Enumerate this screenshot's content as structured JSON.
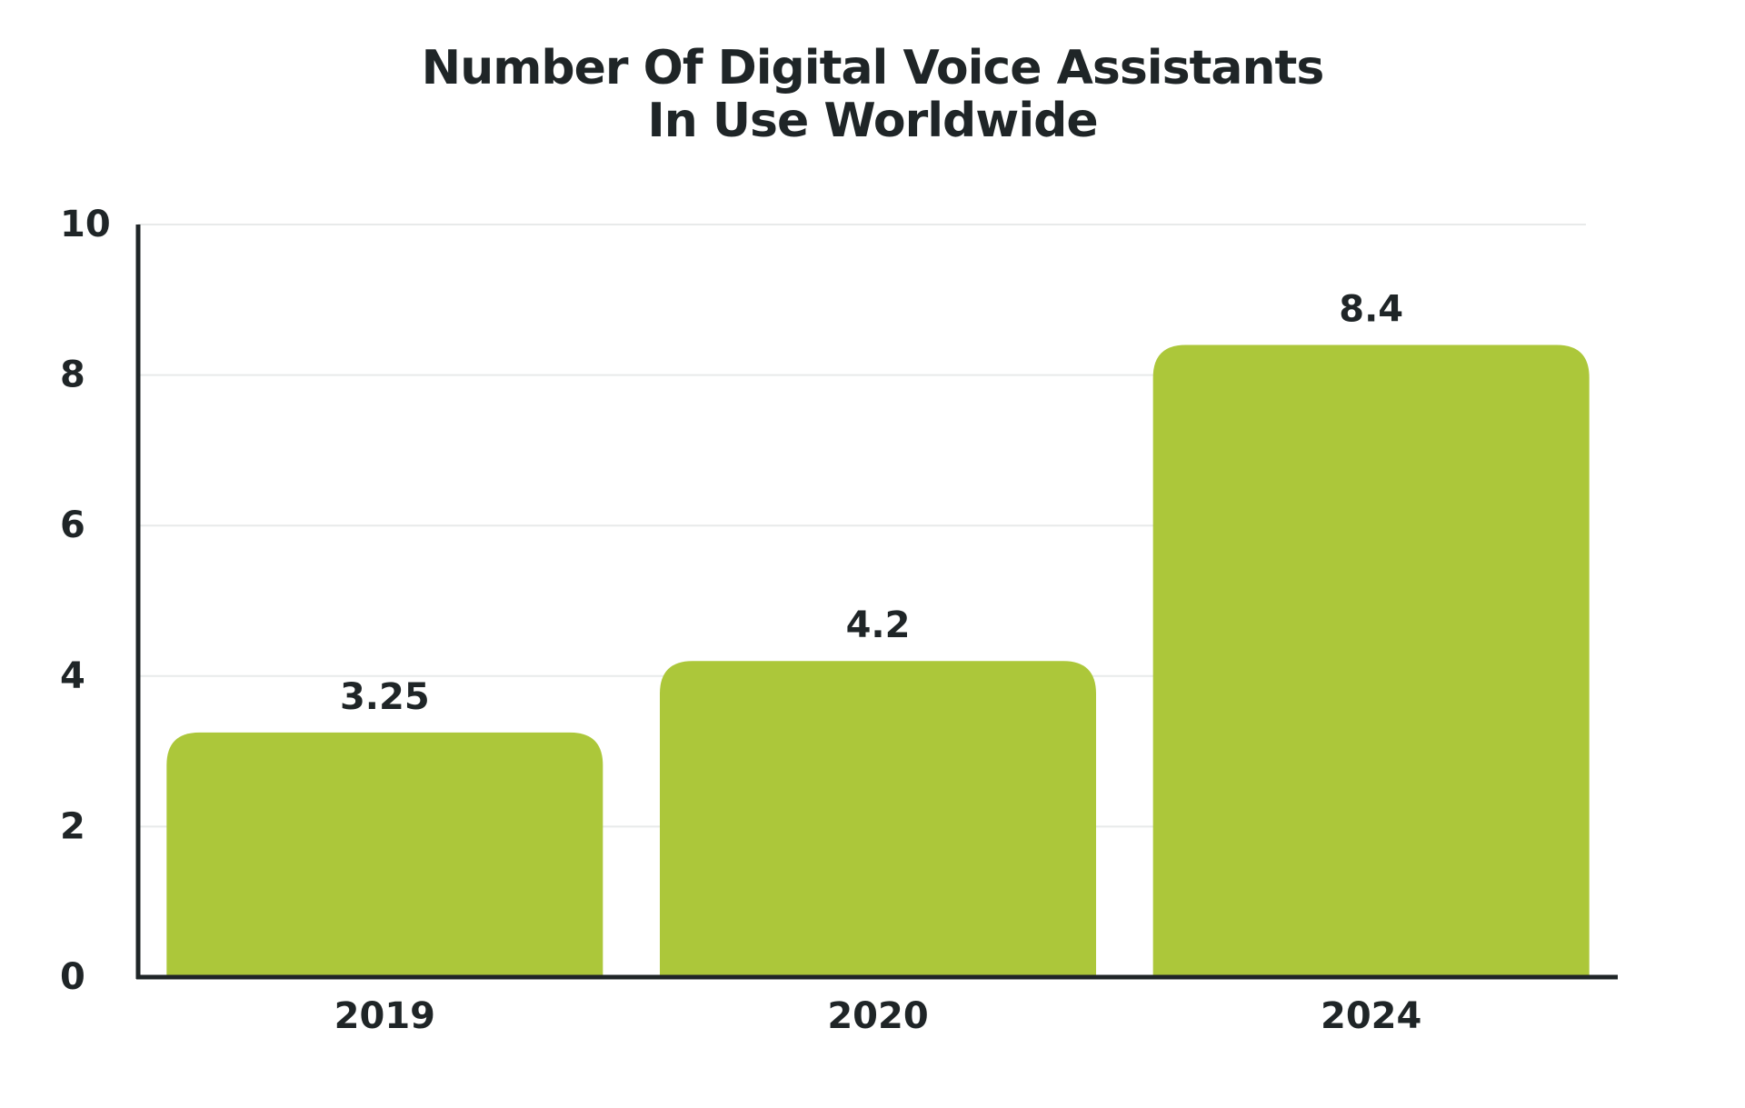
{
  "chart_data": {
    "type": "bar",
    "title": [
      "Number Of Digital Voice Assistants",
      "In Use Worldwide"
    ],
    "xlabel": "",
    "ylabel": "",
    "categories": [
      "2019",
      "2020",
      "2024"
    ],
    "values": [
      3.25,
      4.2,
      8.4
    ],
    "data_labels": [
      "3.25",
      "4.2",
      "8.4"
    ],
    "ylim": [
      0,
      10
    ],
    "yticks": [
      0,
      2,
      4,
      6,
      8,
      10
    ],
    "ytick_labels": [
      "0",
      "2",
      "4",
      "6",
      "8",
      "10"
    ],
    "grid": true,
    "legend": "none",
    "colors": {
      "bar": "#acc73a",
      "text": "#1f2527",
      "axis": "#1f2527",
      "grid": "#e8eaea"
    }
  }
}
